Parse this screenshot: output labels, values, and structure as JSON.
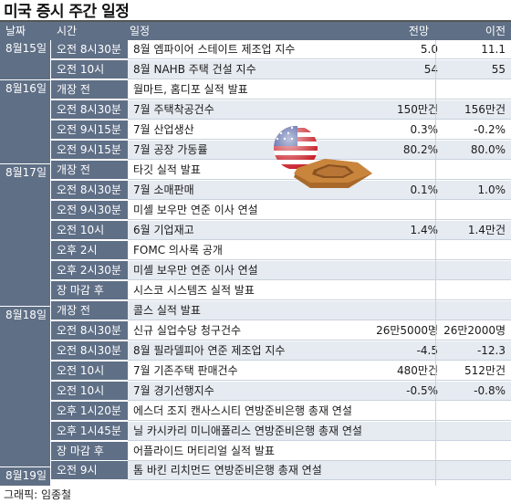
{
  "title": "미국 증시 주간 일정",
  "header": {
    "date": "날짜",
    "time": "시간",
    "event": "일정",
    "forecast": "전망",
    "previous": "이전"
  },
  "dates": [
    "8월15일",
    "8월16일",
    "8월17일",
    "8월18일",
    "8월19일"
  ],
  "rows": [
    {
      "time": "오전 8시30분",
      "event": "8월 엠파이어 스테이트 제조업 지수",
      "forecast": "5.0",
      "previous": "11.1"
    },
    {
      "time": "오전 10시",
      "event": "8월 NAHB 주택 건설 지수",
      "forecast": "54",
      "previous": "55"
    },
    {
      "time": "개장 전",
      "event": "월마트, 홈디포 실적 발표",
      "forecast": "",
      "previous": ""
    },
    {
      "time": "오전 8시30분",
      "event": "7월 주택착공건수",
      "forecast": "150만건",
      "previous": "156만건"
    },
    {
      "time": "오전 9시15분",
      "event": "7월 산업생산",
      "forecast": "0.3%",
      "previous": "-0.2%"
    },
    {
      "time": "오전 9시15분",
      "event": "7월 공장 가동률",
      "forecast": "80.2%",
      "previous": "80.0%"
    },
    {
      "time": "개장 전",
      "event": "타깃 실적 발표",
      "forecast": "",
      "previous": ""
    },
    {
      "time": "오전 8시30분",
      "event": "7월 소매판매",
      "forecast": "0.1%",
      "previous": "1.0%"
    },
    {
      "time": "오전 9시30분",
      "event": "미셸 보우만 연준 이사 연설",
      "forecast": "",
      "previous": ""
    },
    {
      "time": "오전 10시",
      "event": "6월 기업재고",
      "forecast": "1.4%",
      "previous": "1.4만건"
    },
    {
      "time": "오후 2시",
      "event": "FOMC 의사록 공개",
      "forecast": "",
      "previous": ""
    },
    {
      "time": "오후 2시30분",
      "event": "미셸 보우만 연준 이사 연설",
      "forecast": "",
      "previous": ""
    },
    {
      "time": "장 마감 후",
      "event": "시스코 시스템즈 실적 발표",
      "forecast": "",
      "previous": ""
    },
    {
      "time": "개장 전",
      "event": "콜스 실적 발표",
      "forecast": "",
      "previous": ""
    },
    {
      "time": "오전 8시30분",
      "event": "신규 실업수당 청구건수",
      "forecast": "26만5000명",
      "previous": "26만2000명"
    },
    {
      "time": "오전 8시30분",
      "event": "8월 필라델피아 연준 제조업 지수",
      "forecast": "-4.5",
      "previous": "-12.3"
    },
    {
      "time": "오전 10시",
      "event": "7월 기존주택 판매건수",
      "forecast": "480만건",
      "previous": "512만건"
    },
    {
      "time": "오전 10시",
      "event": "7월 경기선행지수",
      "forecast": "-0.5%",
      "previous": "-0.8%"
    },
    {
      "time": "오후 1시20분",
      "event": "에스더 조지 캔사스시티 연방준비은행 총재 연설",
      "forecast": "",
      "previous": ""
    },
    {
      "time": "오후 1시45분",
      "event": "닐 카시카리 미니애폴리스 연방준비은행 총재 연설",
      "forecast": "",
      "previous": ""
    },
    {
      "time": "장 마감 후",
      "event": "어플라이드 머티리얼 실적 발표",
      "forecast": "",
      "previous": ""
    },
    {
      "time": "오전 9시",
      "event": "톰 바킨 리치먼드 연방준비은행 총재 연설",
      "forecast": "",
      "previous": ""
    }
  ],
  "credit": "그래픽: 임종철",
  "colors": {
    "header": "#5f6f86",
    "shade": "#e6ebf1"
  }
}
